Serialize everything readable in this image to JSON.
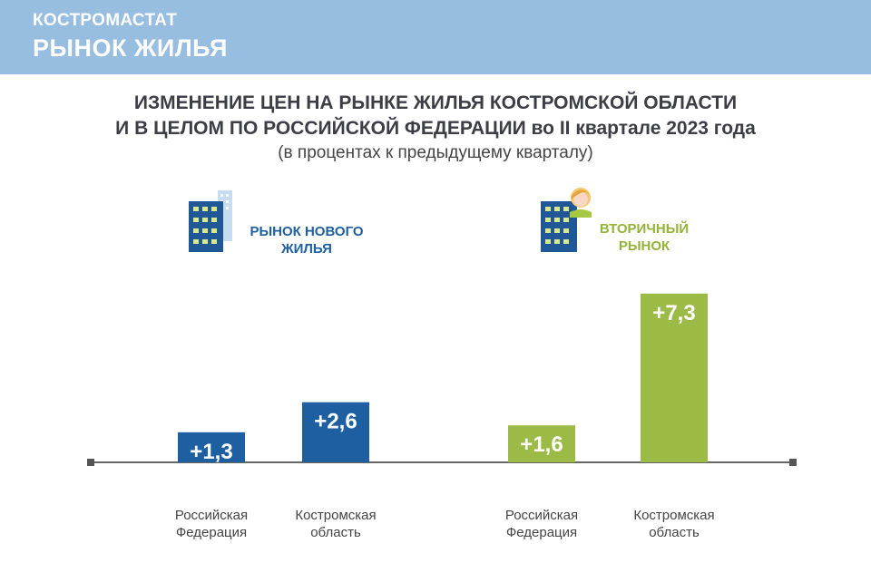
{
  "header": {
    "org": "КОСТРОМАСТАТ",
    "title": "РЫНОК ЖИЛЬЯ"
  },
  "title": {
    "line1": "ИЗМЕНЕНИЕ ЦЕН НА РЫНКЕ ЖИЛЬЯ КОСТРОМСКОЙ ОБЛАСТИ",
    "line2": "И  В ЦЕЛОМ ПО РОССИЙСКОЙ ФЕДЕРАЦИИ во II квартале 2023 года",
    "line3": "(в процентах к предыдущему кварталу)"
  },
  "segments": {
    "new": {
      "line1": "РЫНОК НОВОГО",
      "line2": "ЖИЛЬЯ",
      "icon": "apartment-building-icon"
    },
    "secondary": {
      "line1": "ВТОРИЧНЫЙ",
      "line2": "РЫНОК",
      "icon": "building-with-person-icon"
    }
  },
  "colors": {
    "header_bg": "#97bde0",
    "new_market": "#1d5fa0",
    "secondary_market": "#9cba46",
    "axis": "#666666"
  },
  "chart_data": {
    "type": "bar",
    "title": "ИЗМЕНЕНИЕ ЦЕН НА РЫНКЕ ЖИЛЬЯ КОСТРОМСКОЙ ОБЛАСТИ И  В ЦЕЛОМ ПО РОССИЙСКОЙ ФЕДЕРАЦИИ во II квартале 2023 года",
    "subtitle": "(в процентах к предыдущему кварталу)",
    "ylim": [
      0,
      8
    ],
    "grid": false,
    "groups": [
      {
        "name": "РЫНОК НОВОГО ЖИЛЬЯ",
        "bars": [
          {
            "category": [
              "Российская",
              "Федерация"
            ],
            "value": 1.3,
            "label": "+1,3"
          },
          {
            "category": [
              "Костромская",
              "область"
            ],
            "value": 2.6,
            "label": "+2,6"
          }
        ]
      },
      {
        "name": "ВТОРИЧНЫЙ РЫНОК",
        "bars": [
          {
            "category": [
              "Российская",
              "Федерация"
            ],
            "value": 1.6,
            "label": "+1,6"
          },
          {
            "category": [
              "Костромская",
              "область"
            ],
            "value": 7.3,
            "label": "+7,3"
          }
        ]
      }
    ]
  }
}
